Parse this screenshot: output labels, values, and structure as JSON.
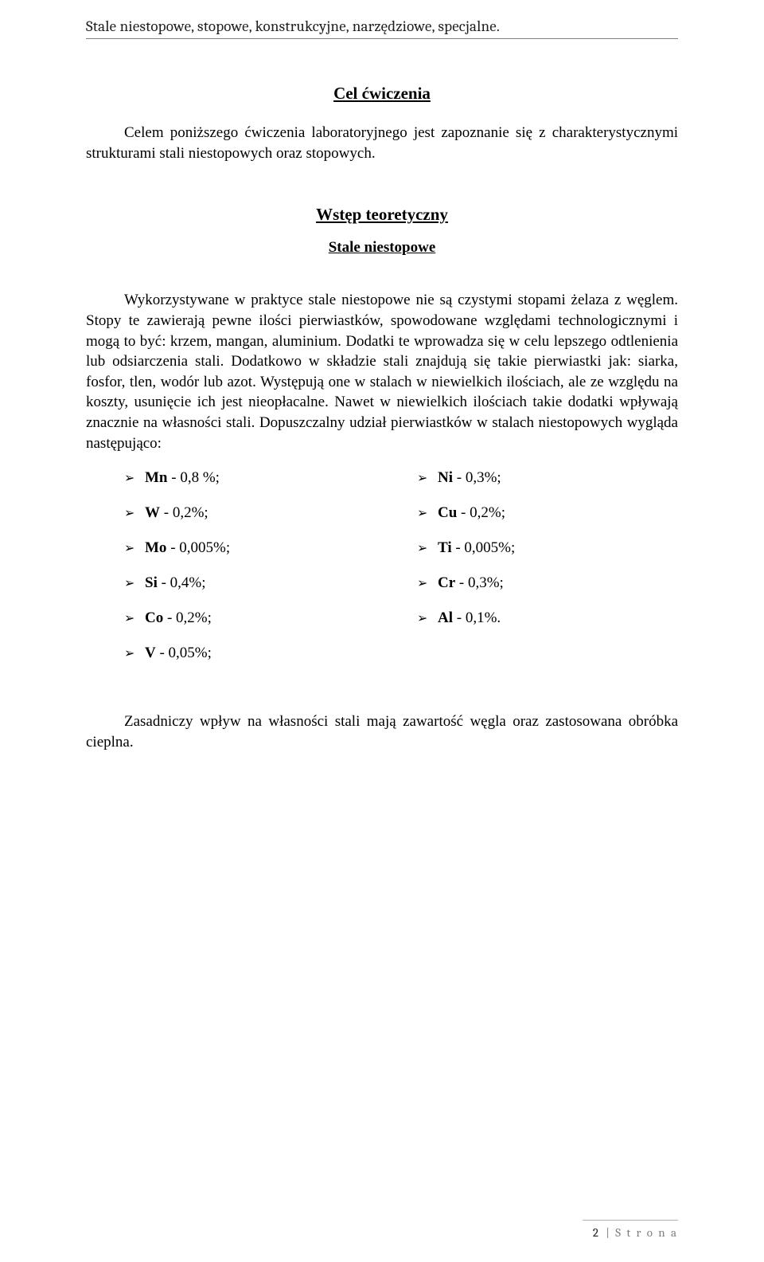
{
  "header": {
    "running_title": "Stale niestopowe, stopowe, konstrukcyjne, narzędziowe, specjalne."
  },
  "section1": {
    "title": "Cel ćwiczenia",
    "intro": "Celem poniższego ćwiczenia laboratoryjnego jest zapoznanie się z charakterystycznymi strukturami stali niestopowych oraz stopowych."
  },
  "section2": {
    "title": "Wstęp teoretyczny",
    "subtitle": "Stale niestopowe",
    "body": "Wykorzystywane w praktyce stale niestopowe nie są czystymi stopami żelaza z węglem. Stopy te zawierają pewne ilości pierwiastków, spowodowane względami technologicznymi i mogą to być: krzem, mangan, aluminium. Dodatki te wprowadza się w celu lepszego odtlenienia lub odsiarczenia stali. Dodatkowo w składzie stali znajdują się takie pierwiastki jak: siarka, fosfor, tlen, wodór lub azot. Występują one w stalach w niewielkich ilościach, ale ze względu na koszty, usunięcie ich jest nieopłacalne. Nawet w niewielkich ilościach takie dodatki wpływają znacznie na własności stali. Dopuszczalny udział pierwiastków w stalach niestopowych wygląda następująco:"
  },
  "elements": {
    "left": [
      {
        "sym": "Mn",
        "val": " - 0,8 %;"
      },
      {
        "sym": "W",
        "val": " - 0,2%;"
      },
      {
        "sym": "Mo",
        "val": " - 0,005%;"
      },
      {
        "sym": "Si",
        "val": " - 0,4%;"
      },
      {
        "sym": "Co",
        "val": " - 0,2%;"
      },
      {
        "sym": "V",
        "val": " - 0,05%;"
      }
    ],
    "right": [
      {
        "sym": "Ni",
        "val": " - 0,3%;"
      },
      {
        "sym": "Cu",
        "val": " - 0,2%;"
      },
      {
        "sym": "Ti",
        "val": " - 0,005%;"
      },
      {
        "sym": "Cr",
        "val": " - 0,3%;"
      },
      {
        "sym": "Al",
        "val": " - 0,1%."
      }
    ]
  },
  "closing": {
    "text": "Zasadniczy wpływ na własności stali mają zawartość węgla oraz zastosowana obróbka cieplna."
  },
  "footer": {
    "page_number": "2",
    "page_label": "| S t r o n a"
  }
}
